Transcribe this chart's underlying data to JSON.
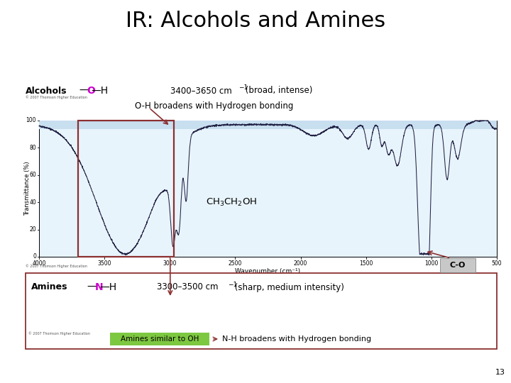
{
  "title": "IR: Alcohols and Amines",
  "title_fontsize": 22,
  "background_color": "#ffffff",
  "slide_number": "13",
  "alcohols_label": "Alcohols",
  "alcohols_oh_O_color": "#cc00cc",
  "alcohols_wavenumber": "3400–3650 cm",
  "alcohols_desc": " (broad, intense)",
  "alcohols_annotation": "O-H broadens with Hydrogen bonding",
  "spectrum_bg_top": "#c8dff0",
  "spectrum_bg_bottom": "#e8f4fc",
  "spectrum_line_color": "#222244",
  "co_label": "C-O",
  "co_box_color": "#c8c8c8",
  "copyright_text": "© 2007 Thomson Higher Education",
  "amines_label": "Amines",
  "amines_nh_N_color": "#cc00cc",
  "amines_wavenumber": "3300–3500 cm",
  "amines_desc": " (sharp, medium intensity)",
  "amines_box_color": "#7dc841",
  "amines_similar": "Amines similar to OH",
  "amines_annotation": "N-H broadens with Hydrogen bonding",
  "red_color": "#8b3030",
  "dark_red": "#7a2020"
}
